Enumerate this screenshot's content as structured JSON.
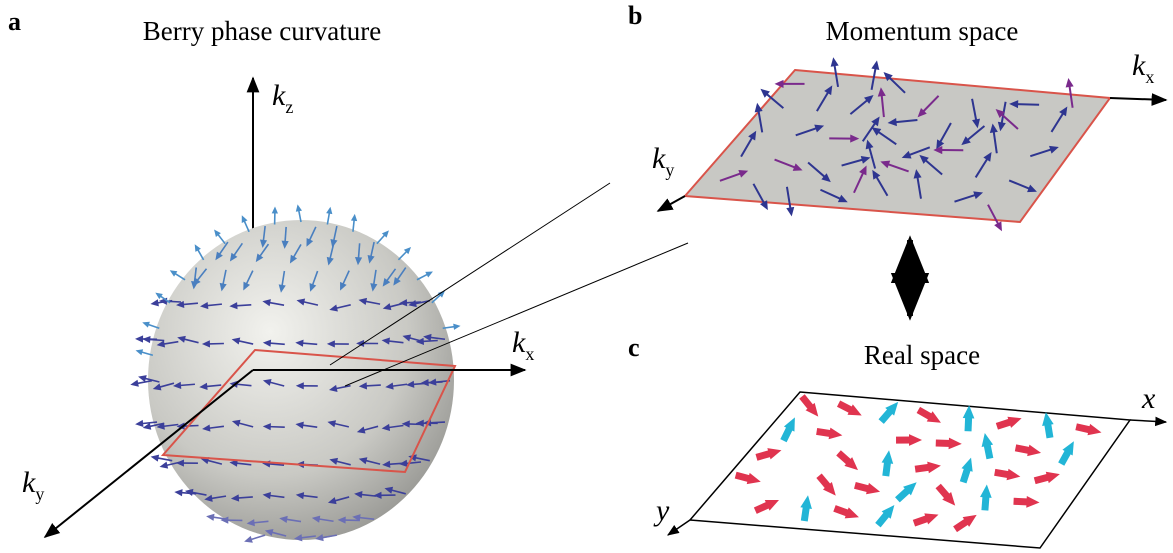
{
  "panels": [
    {
      "label": "a",
      "title": "Berry phase curvature",
      "axes": [
        {
          "symbol": "k",
          "sub": "z"
        },
        {
          "symbol": "k",
          "sub": "x"
        },
        {
          "symbol": "k",
          "sub": "y"
        }
      ]
    },
    {
      "label": "b",
      "title": "Momentum space",
      "axes": [
        {
          "symbol": "k",
          "sub": "x"
        },
        {
          "symbol": "k",
          "sub": "y"
        }
      ]
    },
    {
      "label": "c",
      "title": "Real space",
      "axes": [
        {
          "symbol": "x"
        },
        {
          "symbol": "y"
        }
      ]
    }
  ]
}
